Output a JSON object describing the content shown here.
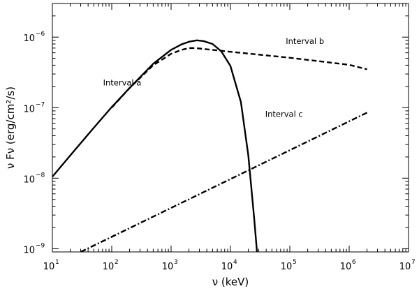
{
  "chart_data": {
    "type": "line",
    "title": "",
    "xlabel": "ν (keV)",
    "ylabel": "ν Fν (erg/cm²/s)",
    "x_scale": "log",
    "y_scale": "log",
    "xlim": [
      10,
      10000000
    ],
    "ylim": [
      9e-10,
      3e-06
    ],
    "x_ticks": [
      {
        "value": 10,
        "base": "10",
        "exp": "1"
      },
      {
        "value": 100,
        "base": "10",
        "exp": "2"
      },
      {
        "value": 1000,
        "base": "10",
        "exp": "3"
      },
      {
        "value": 10000,
        "base": "10",
        "exp": "4"
      },
      {
        "value": 100000,
        "base": "10",
        "exp": "5"
      },
      {
        "value": 1000000,
        "base": "10",
        "exp": "6"
      },
      {
        "value": 10000000,
        "base": "10",
        "exp": "7"
      }
    ],
    "y_ticks": [
      {
        "value": 1e-09,
        "base": "10",
        "exp": "−9"
      },
      {
        "value": 1e-08,
        "base": "10",
        "exp": "−8"
      },
      {
        "value": 1e-07,
        "base": "10",
        "exp": "−7"
      },
      {
        "value": 1e-06,
        "base": "10",
        "exp": "−6"
      }
    ],
    "grid": false,
    "series": [
      {
        "style": "solid",
        "x": [
          10,
          20,
          50,
          100,
          200,
          500,
          1000,
          1500,
          2000,
          2700,
          3500,
          5000,
          7000,
          10000,
          15000,
          20000,
          25000,
          28000
        ],
        "y": [
          1.05e-08,
          2.1e-08,
          5.2e-08,
          1.02e-07,
          1.9e-07,
          4.2e-07,
          6.6e-07,
          7.9e-07,
          8.6e-07,
          9e-07,
          8.8e-07,
          8e-07,
          6.3e-07,
          3.9e-07,
          1.2e-07,
          2.1e-08,
          2.8e-09,
          9e-10
        ]
      },
      {
        "style": "dashed",
        "x": [
          100,
          200,
          500,
          1000,
          1500,
          2000,
          2500,
          3000,
          5000,
          10000,
          100000,
          1000000,
          2000000
        ],
        "y": [
          1e-07,
          1.9e-07,
          4e-07,
          5.8e-07,
          6.6e-07,
          7e-07,
          7e-07,
          6.9e-07,
          6.6e-07,
          6.2e-07,
          5.1e-07,
          4.05e-07,
          3.5e-07
        ]
      },
      {
        "style": "dash-dot",
        "x": [
          30,
          2000000
        ],
        "y": [
          9e-10,
          8.5e-08
        ]
      }
    ],
    "annotations": [
      {
        "text": "Interval a",
        "x": 150,
        "y": 2.26e-07
      },
      {
        "text": "Interval b",
        "x": 180000,
        "y": 8.8e-07
      },
      {
        "text": "Interval c",
        "x": 80000,
        "y": 8.1e-08
      }
    ]
  }
}
